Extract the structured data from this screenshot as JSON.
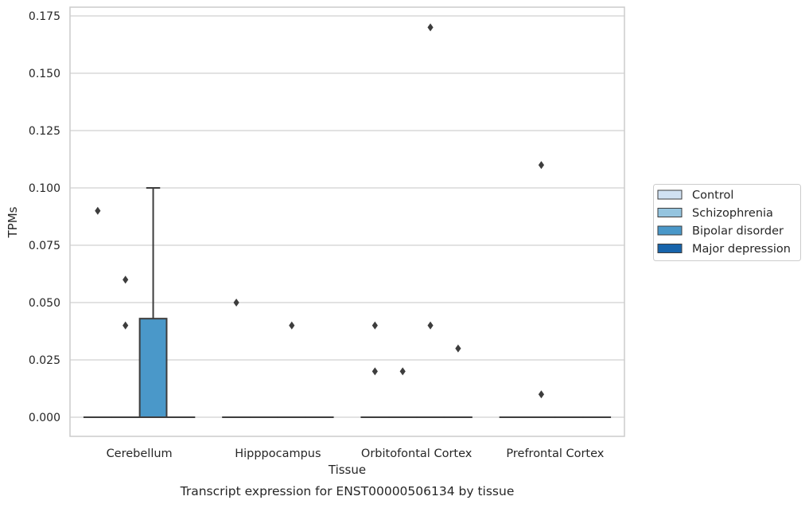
{
  "chart_data": {
    "type": "box",
    "title": "",
    "caption": "Transcript expression for ENST00000506134 by tissue",
    "xlabel": "Tissue",
    "ylabel": "TPMs",
    "categories": [
      "Cerebellum",
      "Hipppocampus",
      "Orbitofontal Cortex",
      "Prefrontal Cortex"
    ],
    "ylim": [
      -0.0085,
      0.179
    ],
    "yticks": [
      0.0,
      0.025,
      0.05,
      0.075,
      0.1,
      0.125,
      0.15,
      0.175
    ],
    "ytick_labels": [
      "0.000",
      "0.025",
      "0.050",
      "0.075",
      "0.100",
      "0.125",
      "0.150",
      "0.175"
    ],
    "grid": true,
    "legend_position": "right",
    "series": [
      {
        "name": "Control",
        "color": "#d0e1f2",
        "boxes": [
          {
            "category": "Cerebellum",
            "q1": 0.0,
            "median": 0.0,
            "q3": 0.0,
            "whisker_low": 0.0,
            "whisker_high": 0.0,
            "outliers": [
              0.09
            ]
          },
          {
            "category": "Hipppocampus",
            "q1": 0.0,
            "median": 0.0,
            "q3": 0.0,
            "whisker_low": 0.0,
            "whisker_high": 0.0,
            "outliers": [
              0.05
            ]
          },
          {
            "category": "Orbitofontal Cortex",
            "q1": 0.0,
            "median": 0.0,
            "q3": 0.0,
            "whisker_low": 0.0,
            "whisker_high": 0.0,
            "outliers": [
              0.04,
              0.02
            ]
          },
          {
            "category": "Prefrontal Cortex",
            "q1": 0.0,
            "median": 0.0,
            "q3": 0.0,
            "whisker_low": 0.0,
            "whisker_high": 0.0,
            "outliers": []
          }
        ]
      },
      {
        "name": "Schizophrenia",
        "color": "#94c4df",
        "boxes": [
          {
            "category": "Cerebellum",
            "q1": 0.0,
            "median": 0.0,
            "q3": 0.0,
            "whisker_low": 0.0,
            "whisker_high": 0.0,
            "outliers": [
              0.06,
              0.04
            ]
          },
          {
            "category": "Hipppocampus",
            "q1": 0.0,
            "median": 0.0,
            "q3": 0.0,
            "whisker_low": 0.0,
            "whisker_high": 0.0,
            "outliers": []
          },
          {
            "category": "Orbitofontal Cortex",
            "q1": 0.0,
            "median": 0.0,
            "q3": 0.0,
            "whisker_low": 0.0,
            "whisker_high": 0.0,
            "outliers": [
              0.02
            ]
          },
          {
            "category": "Prefrontal Cortex",
            "q1": 0.0,
            "median": 0.0,
            "q3": 0.0,
            "whisker_low": 0.0,
            "whisker_high": 0.0,
            "outliers": [
              0.11,
              0.01
            ]
          }
        ]
      },
      {
        "name": "Bipolar disorder",
        "color": "#4a98c9",
        "boxes": [
          {
            "category": "Cerebellum",
            "q1": 0.0,
            "median": 0.0,
            "q3": 0.043,
            "whisker_low": 0.0,
            "whisker_high": 0.1,
            "outliers": []
          },
          {
            "category": "Hipppocampus",
            "q1": 0.0,
            "median": 0.0,
            "q3": 0.0,
            "whisker_low": 0.0,
            "whisker_high": 0.0,
            "outliers": [
              0.04
            ]
          },
          {
            "category": "Orbitofontal Cortex",
            "q1": 0.0,
            "median": 0.0,
            "q3": 0.0,
            "whisker_low": 0.0,
            "whisker_high": 0.0,
            "outliers": [
              0.17,
              0.04
            ]
          },
          {
            "category": "Prefrontal Cortex",
            "q1": 0.0,
            "median": 0.0,
            "q3": 0.0,
            "whisker_low": 0.0,
            "whisker_high": 0.0,
            "outliers": []
          }
        ]
      },
      {
        "name": "Major depression",
        "color": "#1764ab",
        "boxes": [
          {
            "category": "Cerebellum",
            "q1": 0.0,
            "median": 0.0,
            "q3": 0.0,
            "whisker_low": 0.0,
            "whisker_high": 0.0,
            "outliers": []
          },
          {
            "category": "Hipppocampus",
            "q1": 0.0,
            "median": 0.0,
            "q3": 0.0,
            "whisker_low": 0.0,
            "whisker_high": 0.0,
            "outliers": []
          },
          {
            "category": "Orbitofontal Cortex",
            "q1": 0.0,
            "median": 0.0,
            "q3": 0.0,
            "whisker_low": 0.0,
            "whisker_high": 0.0,
            "outliers": [
              0.03
            ]
          },
          {
            "category": "Prefrontal Cortex",
            "q1": 0.0,
            "median": 0.0,
            "q3": 0.0,
            "whisker_low": 0.0,
            "whisker_high": 0.0,
            "outliers": []
          }
        ]
      }
    ]
  }
}
